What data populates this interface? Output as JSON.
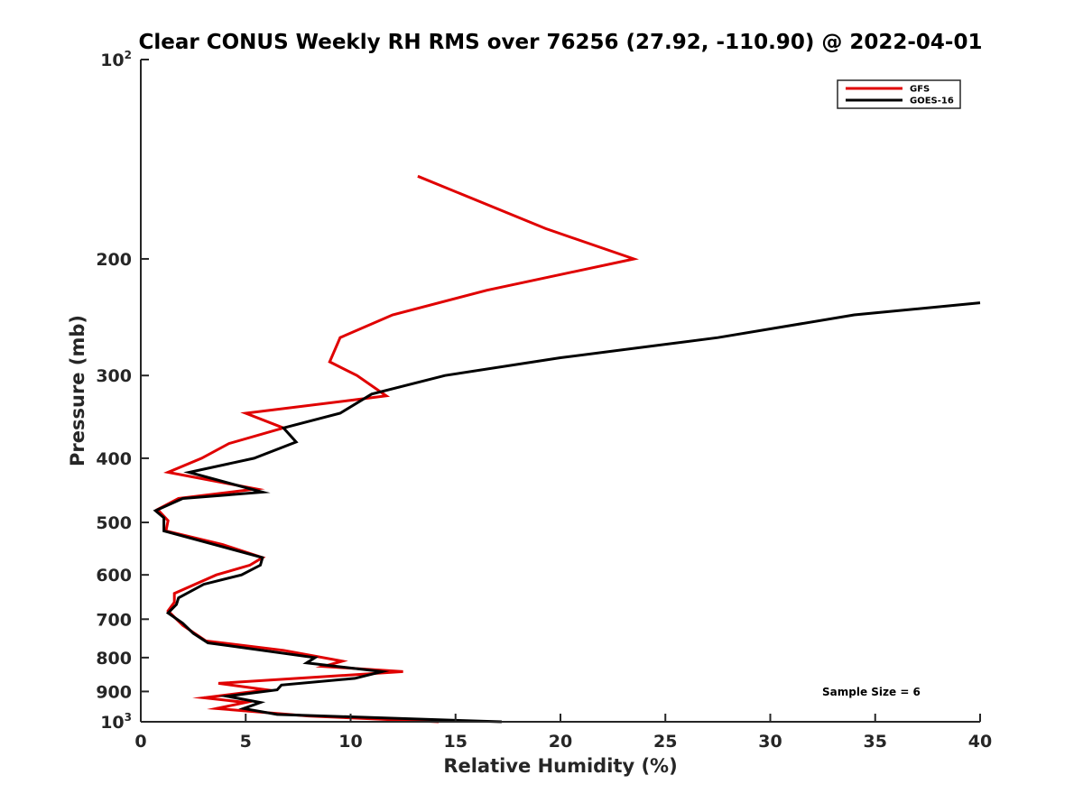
{
  "chart_data": {
    "type": "line",
    "title": "Clear CONUS Weekly RH RMS over 76256 (27.92, -110.90) @ 2022-04-01",
    "xlabel": "Relative Humidity (%)",
    "ylabel": "Pressure (mb)",
    "xlim": [
      0,
      40
    ],
    "ylim": [
      100,
      1000
    ],
    "y_scale": "log",
    "y_reversed": true,
    "x_ticks": [
      "0",
      "5",
      "10",
      "15",
      "20",
      "25",
      "30",
      "35",
      "40"
    ],
    "y_ticks": [
      {
        "value": 100,
        "base": "10",
        "exp": "2"
      },
      {
        "value": 200,
        "label": "200"
      },
      {
        "value": 300,
        "label": "300"
      },
      {
        "value": 400,
        "label": "400"
      },
      {
        "value": 500,
        "label": "500"
      },
      {
        "value": 600,
        "label": "600"
      },
      {
        "value": 700,
        "label": "700"
      },
      {
        "value": 800,
        "label": "800"
      },
      {
        "value": 900,
        "label": "900"
      },
      {
        "value": 1000,
        "base": "10",
        "exp": "3"
      }
    ],
    "legend_position": "top-right",
    "grid": false,
    "annotation": "Sample Size = 6",
    "series": [
      {
        "name": "GFS",
        "color": "#e00000",
        "points": [
          [
            13.2,
            150
          ],
          [
            19.3,
            180
          ],
          [
            23.5,
            200
          ],
          [
            16.5,
            223
          ],
          [
            12.0,
            243
          ],
          [
            9.5,
            263
          ],
          [
            9.0,
            286
          ],
          [
            10.3,
            300
          ],
          [
            11.7,
            322
          ],
          [
            5.0,
            342
          ],
          [
            6.8,
            360
          ],
          [
            4.2,
            380
          ],
          [
            2.9,
            400
          ],
          [
            1.3,
            420
          ],
          [
            5.5,
            445
          ],
          [
            1.8,
            460
          ],
          [
            0.8,
            478
          ],
          [
            1.3,
            497
          ],
          [
            1.2,
            515
          ],
          [
            3.9,
            540
          ],
          [
            5.8,
            565
          ],
          [
            5.2,
            580
          ],
          [
            3.6,
            600
          ],
          [
            1.6,
            640
          ],
          [
            1.6,
            660
          ],
          [
            1.3,
            680
          ],
          [
            1.6,
            695
          ],
          [
            2.0,
            715
          ],
          [
            3.1,
            755
          ],
          [
            6.8,
            780
          ],
          [
            9.6,
            810
          ],
          [
            8.7,
            825
          ],
          [
            12.5,
            840
          ],
          [
            3.7,
            875
          ],
          [
            6.0,
            895
          ],
          [
            3.0,
            920
          ],
          [
            5.0,
            935
          ],
          [
            3.6,
            955
          ],
          [
            8.0,
            980
          ],
          [
            14.2,
            1000
          ]
        ]
      },
      {
        "name": "GOES-16",
        "color": "#000000",
        "points": [
          [
            40.0,
            233
          ],
          [
            34.0,
            243
          ],
          [
            27.5,
            263
          ],
          [
            20.0,
            282
          ],
          [
            14.5,
            300
          ],
          [
            11.0,
            320
          ],
          [
            9.5,
            342
          ],
          [
            6.8,
            360
          ],
          [
            7.4,
            378
          ],
          [
            5.4,
            400
          ],
          [
            2.3,
            420
          ],
          [
            5.8,
            450
          ],
          [
            2.0,
            460
          ],
          [
            0.7,
            480
          ],
          [
            1.1,
            492
          ],
          [
            1.1,
            515
          ],
          [
            3.5,
            540
          ],
          [
            5.8,
            565
          ],
          [
            5.7,
            580
          ],
          [
            4.8,
            600
          ],
          [
            3.0,
            620
          ],
          [
            1.8,
            650
          ],
          [
            1.7,
            665
          ],
          [
            1.3,
            685
          ],
          [
            2.0,
            710
          ],
          [
            2.5,
            735
          ],
          [
            3.2,
            760
          ],
          [
            8.3,
            800
          ],
          [
            7.9,
            815
          ],
          [
            11.5,
            840
          ],
          [
            10.2,
            860
          ],
          [
            6.7,
            880
          ],
          [
            6.5,
            895
          ],
          [
            4.1,
            915
          ],
          [
            5.7,
            935
          ],
          [
            4.9,
            955
          ],
          [
            6.5,
            975
          ],
          [
            17.2,
            1000
          ]
        ]
      }
    ]
  }
}
